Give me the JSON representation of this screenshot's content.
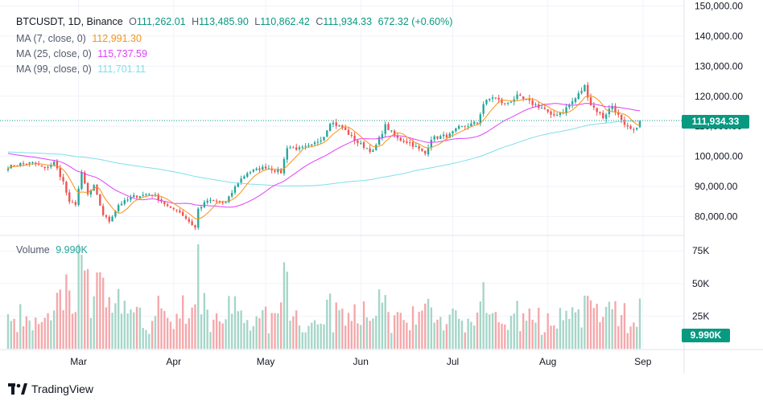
{
  "header": {
    "symbol": "BTCUSDT, 1D, Binance",
    "open_label": "O",
    "open": "111,262.01",
    "high_label": "H",
    "high": "113,485.90",
    "low_label": "L",
    "low": "110,862.42",
    "close_label": "C",
    "close": "111,934.33",
    "change": "672.32 (+0.60%)"
  },
  "ma": [
    {
      "label": "MA (7, close, 0)",
      "value": "112,991.30",
      "color": "#f7931a"
    },
    {
      "label": "MA (25, close, 0)",
      "value": "115,737.59",
      "color": "#e040fb"
    },
    {
      "label": "MA (99, close, 0)",
      "value": "111,701.11",
      "color": "#80deea"
    }
  ],
  "volume": {
    "label": "Volume",
    "value": "9.990K"
  },
  "price_tag": "111,934.33",
  "volume_tag": "9.990K",
  "brand": "TradingView",
  "colors": {
    "up": "#26a69a",
    "down": "#ef5350",
    "up_vol": "#a5d6c8",
    "down_vol": "#f4a8ab",
    "grid": "#f0f3fa"
  },
  "chart_data": {
    "type": "candlestick",
    "price_axis": {
      "min": 74000,
      "max": 152000,
      "ticks": [
        80000,
        90000,
        100000,
        110000,
        120000,
        130000,
        140000,
        150000
      ],
      "tick_labels": [
        "80,000.00",
        "90,000.00",
        "100,000.00",
        "110,000.00",
        "120,000.00",
        "130,000.00",
        "140,000.00",
        "150,000.00"
      ]
    },
    "volume_axis": {
      "max": 85000,
      "ticks": [
        25000,
        50000,
        75000
      ],
      "tick_labels": [
        "25K",
        "50K",
        "75K"
      ]
    },
    "time_axis": {
      "start": "2025-02-06",
      "end": "2025-08-31",
      "labels": [
        "Mar",
        "Apr",
        "May",
        "Jun",
        "Jul",
        "Aug",
        "Sep"
      ],
      "label_dates": [
        "2025-03-01",
        "2025-04-01",
        "2025-05-01",
        "2025-06-01",
        "2025-07-01",
        "2025-08-01",
        "2025-09-01"
      ]
    },
    "close_anchors": [
      [
        "2025-02-06",
        96500
      ],
      [
        "2025-02-10",
        97500
      ],
      [
        "2025-02-14",
        97800
      ],
      [
        "2025-02-18",
        96000
      ],
      [
        "2025-02-21",
        98000
      ],
      [
        "2025-02-24",
        91500
      ],
      [
        "2025-02-26",
        84500
      ],
      [
        "2025-02-28",
        84300
      ],
      [
        "2025-03-02",
        94300
      ],
      [
        "2025-03-04",
        87300
      ],
      [
        "2025-03-06",
        90000
      ],
      [
        "2025-03-09",
        80700
      ],
      [
        "2025-03-11",
        78500
      ],
      [
        "2025-03-14",
        83900
      ],
      [
        "2025-03-19",
        86700
      ],
      [
        "2025-03-24",
        87500
      ],
      [
        "2025-03-26",
        86900
      ],
      [
        "2025-03-31",
        82500
      ],
      [
        "2025-04-02",
        82500
      ],
      [
        "2025-04-06",
        78400
      ],
      [
        "2025-04-08",
        76300
      ],
      [
        "2025-04-09",
        82500
      ],
      [
        "2025-04-12",
        85300
      ],
      [
        "2025-04-18",
        84500
      ],
      [
        "2025-04-22",
        91500
      ],
      [
        "2025-04-25",
        94600
      ],
      [
        "2025-05-01",
        96500
      ],
      [
        "2025-05-06",
        94700
      ],
      [
        "2025-05-08",
        103200
      ],
      [
        "2025-05-12",
        102500
      ],
      [
        "2025-05-16",
        103500
      ],
      [
        "2025-05-20",
        106800
      ],
      [
        "2025-05-22",
        111500
      ],
      [
        "2025-05-26",
        109500
      ],
      [
        "2025-05-31",
        104600
      ],
      [
        "2025-06-05",
        101500
      ],
      [
        "2025-06-09",
        110200
      ],
      [
        "2025-06-13",
        105900
      ],
      [
        "2025-06-17",
        104500
      ],
      [
        "2025-06-22",
        100900
      ],
      [
        "2025-06-24",
        106000
      ],
      [
        "2025-06-30",
        107100
      ],
      [
        "2025-07-03",
        109500
      ],
      [
        "2025-07-09",
        111200
      ],
      [
        "2025-07-11",
        117500
      ],
      [
        "2025-07-14",
        119800
      ],
      [
        "2025-07-18",
        117300
      ],
      [
        "2025-07-22",
        119900
      ],
      [
        "2025-07-26",
        118000
      ],
      [
        "2025-07-31",
        115700
      ],
      [
        "2025-08-02",
        113300
      ],
      [
        "2025-08-06",
        115000
      ],
      [
        "2025-08-10",
        119300
      ],
      [
        "2025-08-13",
        123300
      ],
      [
        "2025-08-15",
        117300
      ],
      [
        "2025-08-19",
        113000
      ],
      [
        "2025-08-22",
        116900
      ],
      [
        "2025-08-24",
        113500
      ],
      [
        "2025-08-26",
        110000
      ],
      [
        "2025-08-29",
        108400
      ],
      [
        "2025-08-31",
        111934
      ]
    ],
    "ma7_last": 112991.3,
    "ma25_last": 115737.59,
    "ma99_last": 111701.11
  }
}
